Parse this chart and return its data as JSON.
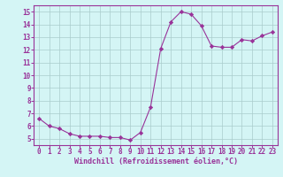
{
  "x": [
    0,
    1,
    2,
    3,
    4,
    5,
    6,
    7,
    8,
    9,
    10,
    11,
    12,
    13,
    14,
    15,
    16,
    17,
    18,
    19,
    20,
    21,
    22,
    23
  ],
  "y": [
    6.6,
    6.0,
    5.8,
    5.4,
    5.2,
    5.2,
    5.2,
    5.1,
    5.1,
    4.9,
    5.5,
    7.5,
    12.1,
    14.2,
    15.0,
    14.8,
    13.9,
    12.3,
    12.2,
    12.2,
    12.8,
    12.7,
    13.1,
    13.4
  ],
  "line_color": "#993399",
  "marker": "D",
  "marker_size": 2.2,
  "bg_color": "#d4f5f5",
  "grid_color": "#aacccc",
  "tick_color": "#993399",
  "xlabel": "Windchill (Refroidissement éolien,°C)",
  "xlabel_color": "#993399",
  "xlim": [
    -0.5,
    23.5
  ],
  "ylim": [
    4.5,
    15.5
  ],
  "yticks": [
    5,
    6,
    7,
    8,
    9,
    10,
    11,
    12,
    13,
    14,
    15
  ],
  "xticks": [
    0,
    1,
    2,
    3,
    4,
    5,
    6,
    7,
    8,
    9,
    10,
    11,
    12,
    13,
    14,
    15,
    16,
    17,
    18,
    19,
    20,
    21,
    22,
    23
  ],
  "border_color": "#993399",
  "tick_labelsize": 5.5,
  "xlabel_fontsize": 6.0
}
